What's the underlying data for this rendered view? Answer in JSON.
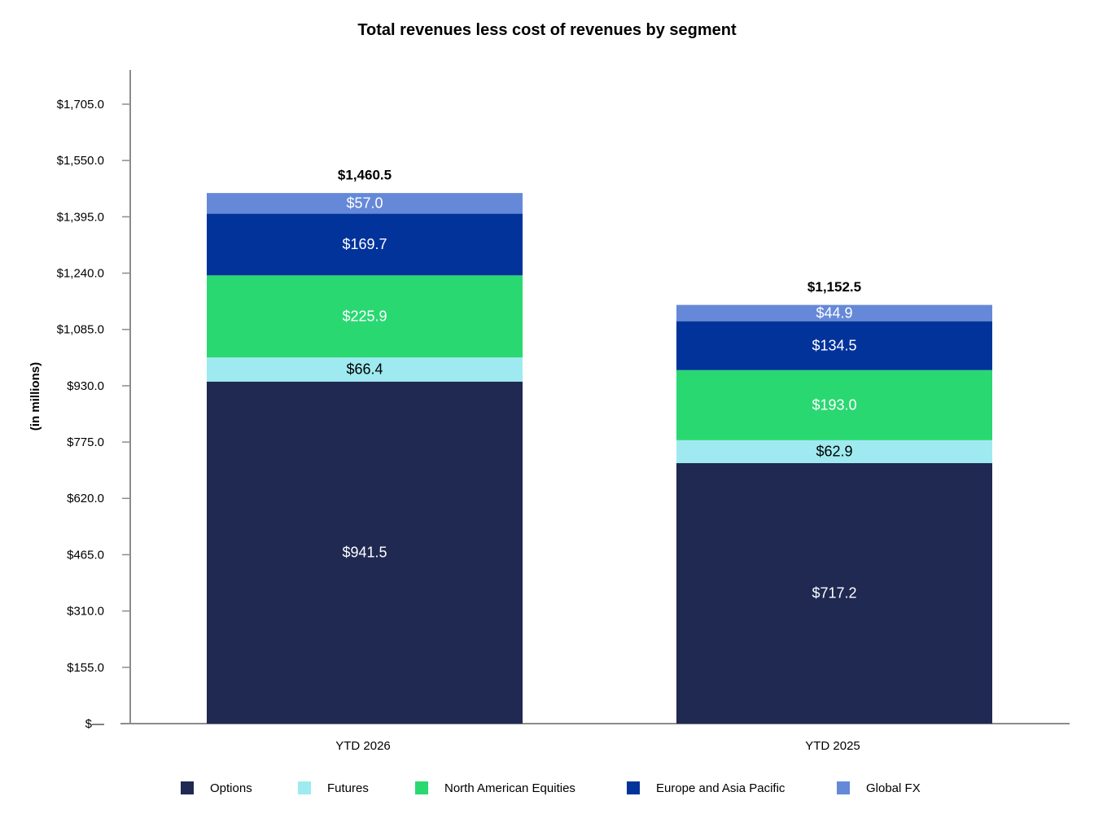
{
  "chart_data": {
    "type": "bar",
    "stacked": true,
    "title": "Total revenues less cost of revenues by segment",
    "xlabel": "",
    "ylabel": "(in millions)",
    "categories": [
      "YTD 2026",
      "YTD 2025"
    ],
    "totals": [
      1460.5,
      1152.5
    ],
    "total_labels": [
      "$1,460.5",
      "$1,152.5"
    ],
    "ylim": [
      0,
      1860
    ],
    "y_ticks": [
      0,
      155,
      310,
      465,
      620,
      775,
      930,
      1085,
      1240,
      1395,
      1550,
      1705
    ],
    "y_tick_labels": [
      "$—",
      "$155.0",
      "$310.0",
      "$465.0",
      "$620.0",
      "$775.0",
      "$930.0",
      "$1,085.0",
      "$1,240.0",
      "$1,395.0",
      "$1,550.0",
      "$1,705.0"
    ],
    "grid": false,
    "legend_position": "bottom",
    "series": [
      {
        "name": "Options",
        "color": "#1f2951",
        "label_color": "#ffffff",
        "values": [
          941.5,
          717.2
        ],
        "labels": [
          "$941.5",
          "$717.2"
        ]
      },
      {
        "name": "Futures",
        "color": "#9eeaf0",
        "label_color": "#000000",
        "values": [
          66.4,
          62.9
        ],
        "labels": [
          "$66.4",
          "$62.9"
        ]
      },
      {
        "name": "North American Equities",
        "color": "#2ad872",
        "label_color": "#ffffff",
        "values": [
          225.9,
          193.0
        ],
        "labels": [
          "$225.9",
          "$193.0"
        ]
      },
      {
        "name": "Europe and Asia Pacific",
        "color": "#01339b",
        "label_color": "#ffffff",
        "values": [
          169.7,
          134.5
        ],
        "labels": [
          "$169.7",
          "$134.5"
        ]
      },
      {
        "name": "Global FX",
        "color": "#6589d8",
        "label_color": "#ffffff",
        "values": [
          57.0,
          44.9
        ],
        "labels": [
          "$57.0",
          "$44.9"
        ]
      }
    ]
  }
}
